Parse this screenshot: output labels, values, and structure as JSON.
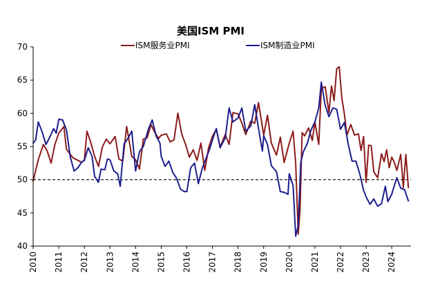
{
  "chart_data": {
    "type": "line",
    "title": "美国ISM PMI",
    "xlabel": "",
    "ylabel": "",
    "ylim": [
      40,
      70
    ],
    "yticks": [
      40,
      45,
      50,
      55,
      60,
      65,
      70
    ],
    "xlim": [
      2010,
      2024.75
    ],
    "xticks": [
      "2010",
      "2011",
      "2012",
      "2013",
      "2014",
      "2015",
      "2016",
      "2017",
      "2018",
      "2019",
      "2020",
      "2021",
      "2022",
      "2023",
      "2024"
    ],
    "legend_position": "top",
    "reference_line": {
      "y": 50,
      "style": "dashed",
      "color": "#000000"
    },
    "series": [
      {
        "name": "ISM服务业PMI",
        "color": "#8B1A1A",
        "points": [
          [
            2010.0,
            49.8
          ],
          [
            2010.2,
            53.0
          ],
          [
            2010.4,
            55.3
          ],
          [
            2010.55,
            54.3
          ],
          [
            2010.7,
            52.5
          ],
          [
            2010.85,
            55.3
          ],
          [
            2011.0,
            57.0
          ],
          [
            2011.2,
            58.0
          ],
          [
            2011.3,
            54.6
          ],
          [
            2011.55,
            53.3
          ],
          [
            2011.75,
            52.9
          ],
          [
            2011.9,
            52.6
          ],
          [
            2012.0,
            53.0
          ],
          [
            2012.1,
            57.3
          ],
          [
            2012.25,
            55.6
          ],
          [
            2012.4,
            53.5
          ],
          [
            2012.55,
            52.0
          ],
          [
            2012.7,
            54.9
          ],
          [
            2012.85,
            56.1
          ],
          [
            2013.0,
            55.4
          ],
          [
            2013.2,
            56.5
          ],
          [
            2013.35,
            53.1
          ],
          [
            2013.5,
            52.8
          ],
          [
            2013.65,
            58.0
          ],
          [
            2013.85,
            53.5
          ],
          [
            2014.0,
            53.0
          ],
          [
            2014.15,
            51.6
          ],
          [
            2014.3,
            56.1
          ],
          [
            2014.45,
            56.3
          ],
          [
            2014.6,
            58.3
          ],
          [
            2014.75,
            57.1
          ],
          [
            2014.9,
            56.2
          ],
          [
            2015.0,
            56.7
          ],
          [
            2015.2,
            56.9
          ],
          [
            2015.35,
            55.7
          ],
          [
            2015.5,
            56.0
          ],
          [
            2015.65,
            60.0
          ],
          [
            2015.8,
            56.9
          ],
          [
            2015.95,
            55.3
          ],
          [
            2016.1,
            53.4
          ],
          [
            2016.25,
            54.5
          ],
          [
            2016.4,
            52.9
          ],
          [
            2016.55,
            55.5
          ],
          [
            2016.7,
            51.4
          ],
          [
            2016.85,
            54.8
          ],
          [
            2017.0,
            56.5
          ],
          [
            2017.15,
            57.6
          ],
          [
            2017.3,
            54.9
          ],
          [
            2017.5,
            56.8
          ],
          [
            2017.65,
            55.3
          ],
          [
            2017.8,
            60.1
          ],
          [
            2018.0,
            59.9
          ],
          [
            2018.15,
            58.5
          ],
          [
            2018.3,
            56.8
          ],
          [
            2018.5,
            58.8
          ],
          [
            2018.65,
            58.5
          ],
          [
            2018.8,
            61.6
          ],
          [
            2019.0,
            56.7
          ],
          [
            2019.15,
            59.7
          ],
          [
            2019.3,
            55.5
          ],
          [
            2019.5,
            53.7
          ],
          [
            2019.65,
            56.4
          ],
          [
            2019.8,
            52.6
          ],
          [
            2020.0,
            55.5
          ],
          [
            2020.15,
            57.3
          ],
          [
            2020.25,
            52.5
          ],
          [
            2020.35,
            41.8
          ],
          [
            2020.42,
            45.4
          ],
          [
            2020.5,
            57.1
          ],
          [
            2020.6,
            56.6
          ],
          [
            2020.75,
            57.8
          ],
          [
            2020.9,
            55.9
          ],
          [
            2021.0,
            58.7
          ],
          [
            2021.15,
            55.3
          ],
          [
            2021.25,
            63.7
          ],
          [
            2021.4,
            64.0
          ],
          [
            2021.55,
            60.1
          ],
          [
            2021.65,
            64.1
          ],
          [
            2021.75,
            61.9
          ],
          [
            2021.85,
            66.7
          ],
          [
            2021.95,
            67.0
          ],
          [
            2022.05,
            62.3
          ],
          [
            2022.15,
            59.9
          ],
          [
            2022.25,
            56.7
          ],
          [
            2022.4,
            58.3
          ],
          [
            2022.55,
            56.7
          ],
          [
            2022.7,
            56.9
          ],
          [
            2022.8,
            54.4
          ],
          [
            2022.9,
            56.5
          ],
          [
            2023.0,
            49.6
          ],
          [
            2023.1,
            55.2
          ],
          [
            2023.2,
            55.1
          ],
          [
            2023.3,
            51.2
          ],
          [
            2023.45,
            50.3
          ],
          [
            2023.6,
            53.9
          ],
          [
            2023.7,
            52.7
          ],
          [
            2023.8,
            54.5
          ],
          [
            2023.9,
            51.8
          ],
          [
            2024.0,
            53.4
          ],
          [
            2024.1,
            52.6
          ],
          [
            2024.2,
            51.4
          ],
          [
            2024.35,
            53.8
          ],
          [
            2024.45,
            48.8
          ],
          [
            2024.55,
            53.8
          ],
          [
            2024.65,
            48.8
          ]
        ]
      },
      {
        "name": "ISM制造业PMI",
        "color": "#1C1C8C",
        "points": [
          [
            2010.0,
            55.5
          ],
          [
            2010.1,
            56.0
          ],
          [
            2010.2,
            58.7
          ],
          [
            2010.35,
            57.2
          ],
          [
            2010.5,
            55.3
          ],
          [
            2010.65,
            56.4
          ],
          [
            2010.8,
            57.7
          ],
          [
            2010.9,
            57.0
          ],
          [
            2011.0,
            59.1
          ],
          [
            2011.15,
            59.0
          ],
          [
            2011.3,
            57.5
          ],
          [
            2011.45,
            53.4
          ],
          [
            2011.6,
            51.3
          ],
          [
            2011.75,
            51.8
          ],
          [
            2011.9,
            52.7
          ],
          [
            2012.0,
            52.9
          ],
          [
            2012.15,
            54.8
          ],
          [
            2012.3,
            53.5
          ],
          [
            2012.4,
            50.5
          ],
          [
            2012.55,
            49.6
          ],
          [
            2012.65,
            51.6
          ],
          [
            2012.8,
            51.5
          ],
          [
            2012.9,
            53.1
          ],
          [
            2013.0,
            53.0
          ],
          [
            2013.15,
            51.3
          ],
          [
            2013.3,
            50.9
          ],
          [
            2013.4,
            49.0
          ],
          [
            2013.55,
            55.4
          ],
          [
            2013.7,
            56.2
          ],
          [
            2013.85,
            57.3
          ],
          [
            2014.0,
            51.3
          ],
          [
            2014.15,
            54.2
          ],
          [
            2014.3,
            55.0
          ],
          [
            2014.5,
            57.6
          ],
          [
            2014.65,
            59.0
          ],
          [
            2014.8,
            56.6
          ],
          [
            2014.95,
            55.5
          ],
          [
            2015.0,
            53.5
          ],
          [
            2015.15,
            52.0
          ],
          [
            2015.3,
            52.8
          ],
          [
            2015.45,
            51.1
          ],
          [
            2015.6,
            50.2
          ],
          [
            2015.75,
            48.6
          ],
          [
            2015.9,
            48.2
          ],
          [
            2016.0,
            48.2
          ],
          [
            2016.15,
            51.8
          ],
          [
            2016.3,
            52.5
          ],
          [
            2016.45,
            49.4
          ],
          [
            2016.6,
            51.7
          ],
          [
            2016.75,
            53.2
          ],
          [
            2016.9,
            54.7
          ],
          [
            2017.0,
            56.0
          ],
          [
            2017.15,
            57.7
          ],
          [
            2017.3,
            54.8
          ],
          [
            2017.5,
            56.3
          ],
          [
            2017.65,
            60.8
          ],
          [
            2017.8,
            58.7
          ],
          [
            2018.0,
            59.3
          ],
          [
            2018.15,
            60.8
          ],
          [
            2018.3,
            57.3
          ],
          [
            2018.5,
            58.1
          ],
          [
            2018.65,
            61.3
          ],
          [
            2018.8,
            57.7
          ],
          [
            2018.95,
            54.3
          ],
          [
            2019.0,
            56.6
          ],
          [
            2019.15,
            55.3
          ],
          [
            2019.3,
            52.1
          ],
          [
            2019.5,
            51.2
          ],
          [
            2019.65,
            48.2
          ],
          [
            2019.8,
            48.1
          ],
          [
            2019.95,
            47.8
          ],
          [
            2020.0,
            50.9
          ],
          [
            2020.15,
            49.1
          ],
          [
            2020.25,
            41.5
          ],
          [
            2020.35,
            43.1
          ],
          [
            2020.45,
            52.6
          ],
          [
            2020.55,
            54.2
          ],
          [
            2020.7,
            55.4
          ],
          [
            2020.85,
            57.5
          ],
          [
            2021.0,
            58.7
          ],
          [
            2021.15,
            60.8
          ],
          [
            2021.25,
            64.7
          ],
          [
            2021.4,
            61.2
          ],
          [
            2021.55,
            59.5
          ],
          [
            2021.7,
            60.8
          ],
          [
            2021.85,
            60.6
          ],
          [
            2022.0,
            57.6
          ],
          [
            2022.15,
            58.6
          ],
          [
            2022.3,
            55.4
          ],
          [
            2022.45,
            52.8
          ],
          [
            2022.6,
            52.8
          ],
          [
            2022.75,
            50.9
          ],
          [
            2022.9,
            48.4
          ],
          [
            2023.0,
            47.4
          ],
          [
            2023.15,
            46.3
          ],
          [
            2023.3,
            47.1
          ],
          [
            2023.45,
            46.0
          ],
          [
            2023.6,
            46.4
          ],
          [
            2023.75,
            49.0
          ],
          [
            2023.85,
            46.7
          ],
          [
            2024.0,
            47.8
          ],
          [
            2024.1,
            49.1
          ],
          [
            2024.2,
            50.3
          ],
          [
            2024.35,
            48.7
          ],
          [
            2024.5,
            48.5
          ],
          [
            2024.65,
            46.8
          ]
        ]
      }
    ]
  }
}
